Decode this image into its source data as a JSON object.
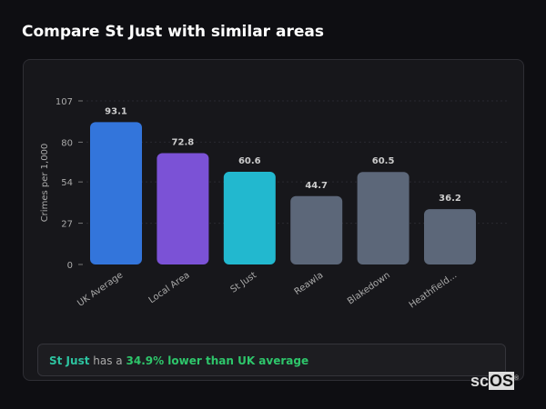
{
  "title": "Compare St Just with similar areas",
  "chart_data": {
    "type": "bar",
    "categories": [
      "UK Average",
      "Local Area",
      "St Just",
      "Reawla",
      "Blakedown",
      "Heathfield..."
    ],
    "values": [
      93.1,
      72.8,
      60.6,
      44.7,
      60.5,
      36.2
    ],
    "colors": [
      "#3375db",
      "#7b52d6",
      "#22b8cf",
      "#5c6779",
      "#5c6779",
      "#5c6779"
    ],
    "ylabel": "Crimes per 1,000",
    "yticks": [
      0,
      27,
      54,
      80,
      107
    ],
    "ylim": [
      0,
      107
    ],
    "grid": true
  },
  "insight": {
    "subject": "St Just",
    "middle": "has a",
    "highlight": "34.9% lower than UK average"
  },
  "logo": {
    "prefix": "sc",
    "boxed": "OS",
    "mark": "®"
  }
}
